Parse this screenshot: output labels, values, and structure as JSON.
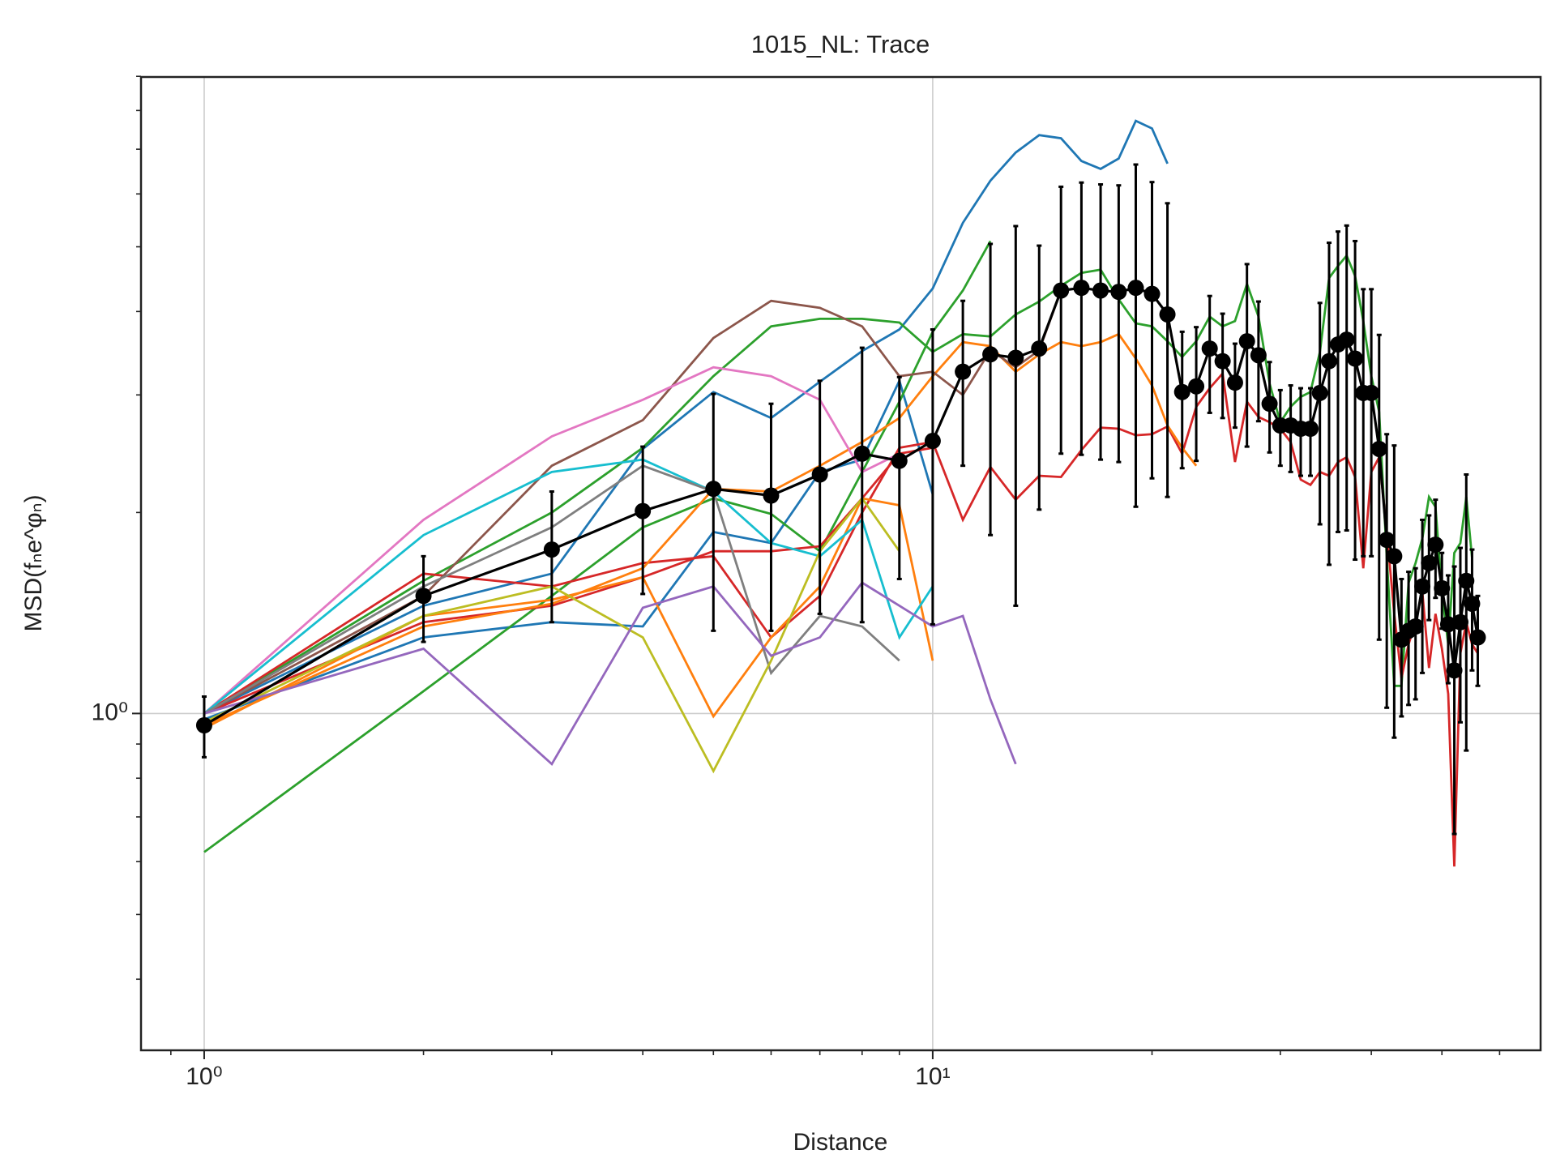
{
  "chart_data": {
    "type": "line",
    "title": "1015_NL: Trace",
    "x_label": "Distance",
    "y_label": "MSD(fₙe^φₙ)",
    "xscale": "log",
    "yscale": "log",
    "grid": true,
    "xlim": [
      0.819,
      68.3
    ],
    "ylim": [
      0.313,
      8.98
    ],
    "xticks": [
      {
        "value": 1,
        "label": "10⁰"
      },
      {
        "value": 10,
        "label": "10¹"
      }
    ],
    "yticks": [
      {
        "value": 1,
        "label": "10⁰"
      }
    ],
    "xminor": [
      0.9,
      2,
      3,
      4,
      5,
      6,
      7,
      8,
      9,
      20,
      30,
      40,
      50,
      60
    ],
    "yminor": [
      0.4,
      0.5,
      0.6,
      0.7,
      0.8,
      0.9,
      2,
      3,
      4,
      5,
      6,
      7,
      8,
      9
    ],
    "series": [
      {
        "color": "#1f77b4",
        "x": [
          1,
          2,
          3,
          4,
          5,
          6,
          7,
          8,
          9,
          10,
          11,
          12,
          13,
          14,
          15,
          16,
          17,
          18,
          19,
          20,
          21
        ],
        "values": [
          1.0,
          1.45,
          1.62,
          2.49,
          3.03,
          2.77,
          3.14,
          3.49,
          3.76,
          4.33,
          5.43,
          6.28,
          6.92,
          7.35,
          7.27,
          6.72,
          6.54,
          6.78,
          7.72,
          7.52,
          6.66
        ]
      },
      {
        "color": "#1f77b4",
        "x": [
          1,
          2,
          3,
          4,
          5,
          6,
          7,
          8,
          9,
          10
        ],
        "values": [
          0.98,
          1.3,
          1.37,
          1.35,
          1.87,
          1.8,
          2.3,
          2.4,
          3.15,
          2.13
        ]
      },
      {
        "color": "#2ca02c",
        "x": [
          1,
          2,
          3,
          4,
          5,
          6,
          7,
          8,
          9,
          10,
          11,
          12
        ],
        "values": [
          0.62,
          1.08,
          1.5,
          1.9,
          2.1,
          1.99,
          1.75,
          2.3,
          2.93,
          3.73,
          4.3,
          5.1
        ]
      },
      {
        "color": "#2ca02c",
        "x": [
          1,
          2,
          3,
          4,
          5,
          6,
          7,
          8,
          9,
          10,
          11,
          12,
          13,
          14,
          15,
          16,
          17,
          18,
          19,
          20,
          21,
          22,
          23,
          24,
          25,
          26,
          27,
          28,
          29,
          30,
          31,
          32,
          33,
          34,
          35,
          36,
          37,
          38,
          39,
          40,
          41,
          42,
          43,
          44,
          45,
          46,
          47,
          48,
          49,
          50,
          51,
          52,
          53,
          54,
          55
        ],
        "values": [
          1.0,
          1.58,
          2.0,
          2.5,
          3.2,
          3.8,
          3.9,
          3.9,
          3.85,
          3.48,
          3.7,
          3.67,
          3.96,
          4.14,
          4.37,
          4.57,
          4.62,
          4.17,
          3.84,
          3.8,
          3.61,
          3.42,
          3.61,
          3.93,
          3.8,
          3.87,
          4.4,
          3.93,
          3.12,
          2.73,
          2.88,
          2.98,
          3.03,
          3.48,
          4.49,
          4.68,
          4.85,
          4.52,
          3.87,
          3.2,
          2.83,
          1.71,
          1.1,
          1.1,
          1.57,
          1.68,
          1.83,
          2.11,
          2.04,
          1.52,
          1.27,
          1.74,
          1.8,
          2.11,
          1.71
        ]
      },
      {
        "color": "#d62728",
        "x": [
          1,
          2,
          3,
          4,
          5,
          6,
          7,
          8,
          9,
          10,
          11,
          12,
          13,
          14,
          15,
          16,
          17,
          18,
          19,
          20,
          21,
          22,
          23,
          24,
          25,
          26,
          27,
          28,
          29,
          30,
          31,
          32,
          33,
          34,
          35,
          36,
          37,
          38,
          39,
          40,
          41,
          42,
          43,
          44,
          45,
          46,
          47,
          48,
          49,
          50,
          51,
          52,
          53,
          54,
          55,
          56
        ],
        "values": [
          1.0,
          1.62,
          1.55,
          1.68,
          1.72,
          1.3,
          1.5,
          2.0,
          2.5,
          2.55,
          1.95,
          2.34,
          2.09,
          2.27,
          2.26,
          2.48,
          2.68,
          2.67,
          2.61,
          2.62,
          2.69,
          2.45,
          2.88,
          3.07,
          3.23,
          2.38,
          2.93,
          2.78,
          2.73,
          2.67,
          2.55,
          2.24,
          2.2,
          2.3,
          2.27,
          2.38,
          2.42,
          2.26,
          1.65,
          2.3,
          2.42,
          1.87,
          1.41,
          1.13,
          1.27,
          1.37,
          1.52,
          1.17,
          1.41,
          1.25,
          1.07,
          0.59,
          1.23,
          1.37,
          1.27,
          1.23
        ]
      },
      {
        "color": "#d62728",
        "x": [
          1,
          2,
          3,
          4,
          5,
          6,
          7,
          8,
          9,
          10
        ],
        "values": [
          1.0,
          1.37,
          1.45,
          1.6,
          1.75,
          1.75,
          1.78,
          2.1,
          2.45,
          2.5
        ]
      },
      {
        "color": "#ff7f0e",
        "x": [
          1,
          2,
          3,
          4,
          5,
          6,
          7,
          8,
          9,
          10,
          11,
          12,
          13,
          14,
          15,
          16,
          17,
          18,
          19,
          20,
          21,
          22,
          23
        ],
        "values": [
          0.96,
          1.35,
          1.46,
          1.65,
          2.17,
          2.15,
          2.35,
          2.55,
          2.77,
          3.2,
          3.6,
          3.55,
          3.25,
          3.45,
          3.6,
          3.55,
          3.6,
          3.7,
          3.4,
          3.1,
          2.7,
          2.5,
          2.35
        ]
      },
      {
        "color": "#ff7f0e",
        "x": [
          1,
          2,
          3,
          4,
          5,
          6,
          7,
          8,
          9,
          10
        ],
        "values": [
          0.95,
          1.4,
          1.48,
          1.6,
          0.99,
          1.3,
          1.55,
          2.1,
          2.05,
          1.2
        ]
      },
      {
        "color": "#8c564b",
        "x": [
          1,
          2,
          3,
          4,
          5,
          6,
          7,
          8,
          9,
          10,
          11,
          12,
          13,
          14,
          15
        ],
        "values": [
          1.0,
          1.5,
          2.35,
          2.75,
          3.65,
          4.15,
          4.05,
          3.8,
          3.2,
          3.25,
          3.0,
          3.5,
          3.3,
          3.5,
          4.3
        ]
      },
      {
        "color": "#e377c2",
        "x": [
          1,
          2,
          3,
          4,
          5,
          6,
          7,
          8,
          9
        ],
        "values": [
          1.0,
          1.95,
          2.6,
          2.95,
          3.3,
          3.2,
          2.95,
          2.3,
          2.45
        ]
      },
      {
        "color": "#17becf",
        "x": [
          1,
          2,
          3,
          4,
          5,
          6,
          7,
          8,
          9,
          10
        ],
        "values": [
          1.0,
          1.85,
          2.3,
          2.4,
          2.15,
          1.8,
          1.72,
          1.95,
          1.3,
          1.55
        ]
      },
      {
        "color": "#7f7f7f",
        "x": [
          1,
          2,
          3,
          4,
          5,
          6,
          7,
          8,
          9
        ],
        "values": [
          1.0,
          1.55,
          1.9,
          2.35,
          2.15,
          1.15,
          1.4,
          1.35,
          1.2
        ]
      },
      {
        "color": "#bcbd22",
        "x": [
          1,
          2,
          3,
          4,
          5,
          6,
          7,
          8,
          9
        ],
        "values": [
          0.97,
          1.4,
          1.55,
          1.3,
          0.82,
          1.2,
          1.75,
          2.1,
          1.75
        ]
      },
      {
        "color": "#9467bd",
        "x": [
          1,
          2,
          3,
          4,
          5,
          6,
          7,
          8,
          9,
          10,
          11,
          12,
          13
        ],
        "values": [
          1.0,
          1.25,
          0.84,
          1.44,
          1.55,
          1.22,
          1.3,
          1.57,
          1.45,
          1.35,
          1.4,
          1.05,
          0.84
        ]
      },
      {
        "color": "#000000",
        "marker": "o",
        "x": [
          1,
          2,
          3,
          4,
          5,
          6,
          7,
          8,
          9,
          10,
          11,
          12,
          13,
          14,
          15,
          16,
          17,
          18,
          19,
          20,
          21,
          22,
          23,
          24,
          25,
          26,
          27,
          28,
          29,
          30,
          31,
          32,
          33,
          34,
          35,
          36,
          37,
          38,
          39,
          40,
          41,
          42,
          43,
          44,
          45,
          46,
          47,
          48,
          49,
          50,
          51,
          52,
          53,
          54,
          55,
          56
        ],
        "values": [
          0.96,
          1.5,
          1.76,
          2.01,
          2.17,
          2.12,
          2.28,
          2.45,
          2.39,
          2.56,
          3.25,
          3.45,
          3.41,
          3.52,
          4.3,
          4.34,
          4.3,
          4.28,
          4.34,
          4.25,
          3.96,
          3.03,
          3.09,
          3.52,
          3.37,
          3.13,
          3.61,
          3.44,
          2.91,
          2.7,
          2.7,
          2.67,
          2.67,
          3.02,
          3.37,
          3.57,
          3.63,
          3.4,
          3.02,
          3.02,
          2.49,
          1.82,
          1.72,
          1.29,
          1.33,
          1.35,
          1.55,
          1.68,
          1.79,
          1.54,
          1.36,
          1.16,
          1.37,
          1.58,
          1.46,
          1.3
        ],
        "errors": [
          0.1,
          0.22,
          0.39,
          0.5,
          0.84,
          0.79,
          0.87,
          1.08,
          0.8,
          1.2,
          0.9,
          1.6,
          1.96,
          1.5,
          1.85,
          1.9,
          1.9,
          1.9,
          2.3,
          2.0,
          1.85,
          0.7,
          0.7,
          0.7,
          0.6,
          0.45,
          1.1,
          0.7,
          0.45,
          0.35,
          0.4,
          0.4,
          0.4,
          1.1,
          1.7,
          1.7,
          1.75,
          1.7,
          1.3,
          1.3,
          1.2,
          0.8,
          0.8,
          0.3,
          0.3,
          0.3,
          0.4,
          0.3,
          0.3,
          0.2,
          0.25,
          0.5,
          0.4,
          0.7,
          0.3,
          0.2
        ]
      }
    ]
  }
}
